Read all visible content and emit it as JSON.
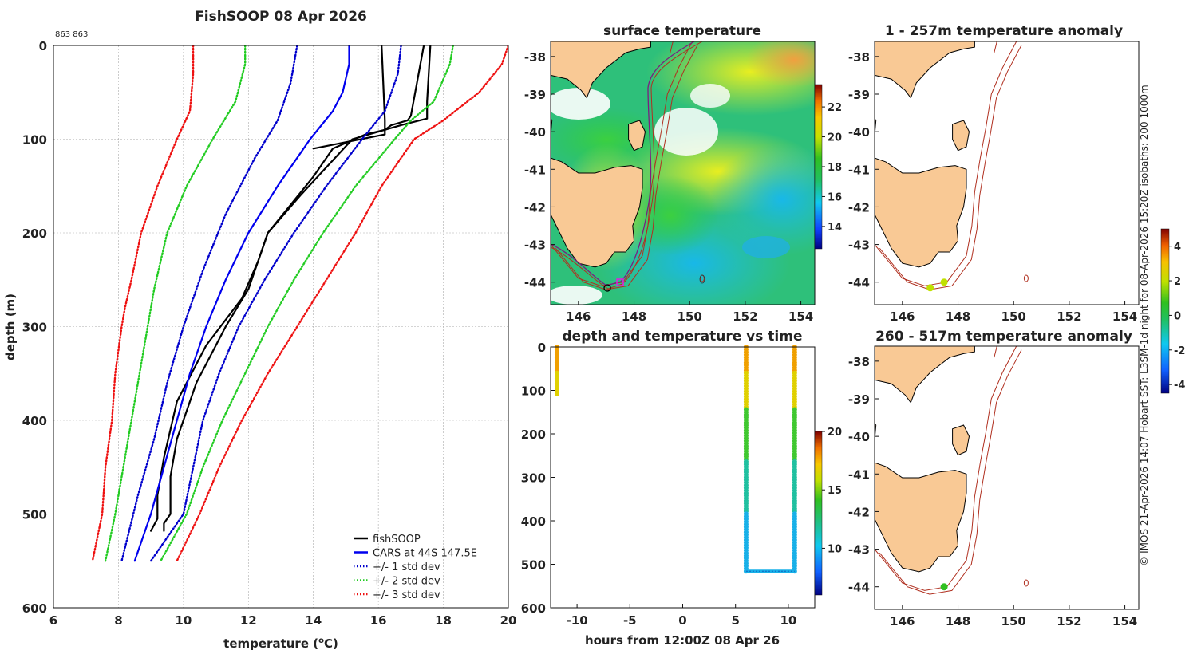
{
  "main_title": "FishSOOP 08 Apr 2026",
  "probe_ids": "863 863",
  "credit": "© IMOS 21-Apr-2026 14:07 Hobart SST: L3SM-1d night for 08-Apr-2026 15:20Z isobaths: 200  1000m",
  "colors": {
    "land": "#f9c995",
    "isobath": "#b03020",
    "fishsoop": "#000000",
    "cars": "#0000ee",
    "std1": "#0000cc",
    "std2": "#22cc22",
    "std3": "#ee1111"
  },
  "chart_data": [
    {
      "id": "profile",
      "type": "line",
      "title": "FishSOOP 08 Apr 2026",
      "xlabel": "temperature (",
      "xlabel_sup": "o",
      "xlabel_end": "C)",
      "ylabel": "depth (m)",
      "xlim": [
        6,
        20
      ],
      "ylim": [
        600,
        0
      ],
      "xticks": [
        "6",
        "8",
        "10",
        "12",
        "14",
        "16",
        "18",
        "20"
      ],
      "yticks": [
        "0",
        "100",
        "200",
        "300",
        "400",
        "500",
        "600"
      ],
      "legend": [
        "fishSOOP",
        "CARS at 44S 147.5E",
        "+/- 1 std dev",
        "+/- 2 std dev",
        "+/- 3 std dev"
      ],
      "series": [
        {
          "name": "fishSOOP down",
          "depth": [
            0,
            60,
            78,
            85,
            100,
            130,
            160,
            200,
            230,
            260,
            300,
            360,
            420,
            460,
            500,
            510,
            518
          ],
          "temp": [
            17.6,
            17.5,
            17.5,
            16.7,
            15.2,
            14.4,
            13.6,
            12.6,
            12.3,
            12.0,
            11.3,
            10.4,
            9.8,
            9.6,
            9.6,
            9.4,
            9.4
          ]
        },
        {
          "name": "fishSOOP up",
          "depth": [
            518,
            505,
            480,
            440,
            380,
            320,
            270,
            230,
            200,
            170,
            140,
            110,
            95,
            90,
            85,
            80,
            75,
            0
          ],
          "temp": [
            9.0,
            9.2,
            9.2,
            9.4,
            9.8,
            10.7,
            11.8,
            12.3,
            12.6,
            13.3,
            14.0,
            14.6,
            15.6,
            16.2,
            16.4,
            16.9,
            17.0,
            17.4
          ]
        },
        {
          "name": "fishSOOP up 2",
          "depth": [
            110,
            95,
            80,
            0
          ],
          "temp": [
            14.0,
            16.2,
            16.2,
            16.1
          ]
        },
        {
          "name": "CARS at 44S 147.5E",
          "depth": [
            0,
            20,
            50,
            70,
            100,
            150,
            200,
            250,
            300,
            350,
            400,
            450,
            500,
            550
          ],
          "temp": [
            15.1,
            15.1,
            14.9,
            14.6,
            13.9,
            12.9,
            12.0,
            11.3,
            10.7,
            10.2,
            9.8,
            9.4,
            9.0,
            8.5
          ]
        },
        {
          "name": "std1 low",
          "depth": [
            0,
            40,
            80,
            120,
            180,
            240,
            300,
            360,
            420,
            480,
            550
          ],
          "temp": [
            13.5,
            13.3,
            12.9,
            12.2,
            11.3,
            10.6,
            10.0,
            9.5,
            9.1,
            8.6,
            8.1
          ]
        },
        {
          "name": "std1 high",
          "depth": [
            0,
            30,
            70,
            100,
            150,
            200,
            250,
            300,
            350,
            400,
            450,
            500,
            550
          ],
          "temp": [
            16.7,
            16.6,
            16.2,
            15.5,
            14.4,
            13.4,
            12.5,
            11.7,
            11.1,
            10.6,
            10.3,
            10.0,
            9.0
          ]
        },
        {
          "name": "std2 low",
          "depth": [
            0,
            20,
            60,
            100,
            150,
            200,
            260,
            320,
            380,
            440,
            500,
            550
          ],
          "temp": [
            11.9,
            11.9,
            11.6,
            10.9,
            10.1,
            9.5,
            9.1,
            8.8,
            8.5,
            8.2,
            7.9,
            7.6
          ]
        },
        {
          "name": "std2 high",
          "depth": [
            0,
            20,
            60,
            80,
            100,
            150,
            200,
            250,
            300,
            350,
            400,
            450,
            500,
            550
          ],
          "temp": [
            18.3,
            18.2,
            17.7,
            17.0,
            16.5,
            15.3,
            14.3,
            13.4,
            12.6,
            11.9,
            11.2,
            10.6,
            10.1,
            9.3
          ]
        },
        {
          "name": "std3 low",
          "depth": [
            0,
            30,
            70,
            100,
            150,
            200,
            250,
            280,
            300,
            350,
            400,
            450,
            500,
            550
          ],
          "temp": [
            10.3,
            10.3,
            10.2,
            9.8,
            9.2,
            8.7,
            8.4,
            8.2,
            8.1,
            7.9,
            7.8,
            7.6,
            7.5,
            7.2
          ]
        },
        {
          "name": "std3 high",
          "depth": [
            0,
            20,
            50,
            80,
            100,
            150,
            200,
            250,
            300,
            350,
            400,
            450,
            500,
            550
          ],
          "temp": [
            20.0,
            19.8,
            19.1,
            18.0,
            17.1,
            16.1,
            15.3,
            14.4,
            13.5,
            12.6,
            11.8,
            11.1,
            10.5,
            9.8
          ]
        }
      ]
    },
    {
      "id": "sst_map",
      "type": "heatmap",
      "title": "surface temperature",
      "xlim": [
        145,
        154.5
      ],
      "ylim": [
        -44.6,
        -37.6
      ],
      "xticks": [
        "146",
        "148",
        "150",
        "152",
        "154"
      ],
      "yticks": [
        "-38",
        "-39",
        "-40",
        "-41",
        "-42",
        "-43",
        "-44"
      ],
      "colorbar_ticks": [
        "22",
        "20",
        "18",
        "16",
        "14"
      ],
      "colorbar_range": [
        12.5,
        23.5
      ]
    },
    {
      "id": "time_series",
      "type": "scatter",
      "title": "depth and temperature vs time",
      "xlabel": "hours from 12:00Z 08 Apr 26",
      "xlim": [
        -12.5,
        12.5
      ],
      "ylim": [
        600,
        0
      ],
      "xticks": [
        "-10",
        "-5",
        "0",
        "5",
        "10"
      ],
      "yticks": [
        "0",
        "100",
        "200",
        "300",
        "400",
        "500",
        "600"
      ],
      "colorbar_ticks": [
        "20",
        "15",
        "10"
      ],
      "colorbar_range": [
        6,
        20
      ],
      "casts": [
        {
          "time_start": -11.9,
          "time_end": -11.9,
          "max_depth": 110
        },
        {
          "time_start": 6.0,
          "time_end": 10.6,
          "max_depth": 516
        }
      ]
    },
    {
      "id": "anom_map_1",
      "type": "scatter",
      "title": "1 - 257m temperature anomaly",
      "xlim": [
        145,
        154.5
      ],
      "ylim": [
        -44.6,
        -37.6
      ],
      "xticks": [
        "146",
        "148",
        "150",
        "152",
        "154"
      ],
      "yticks": [
        "-38",
        "-39",
        "-40",
        "-41",
        "-42",
        "-43",
        "-44"
      ],
      "points": [
        {
          "lon": 147.0,
          "lat": -44.15,
          "anomaly": 1.8
        },
        {
          "lon": 147.5,
          "lat": -44.0,
          "anomaly": 1.5
        }
      ]
    },
    {
      "id": "anom_map_2",
      "type": "scatter",
      "title": "260 - 517m temperature anomaly",
      "xlim": [
        145,
        154.5
      ],
      "ylim": [
        -44.6,
        -37.6
      ],
      "xticks": [
        "146",
        "148",
        "150",
        "152",
        "154"
      ],
      "yticks": [
        "-38",
        "-39",
        "-40",
        "-41",
        "-42",
        "-43",
        "-44"
      ],
      "points": [
        {
          "lon": 147.5,
          "lat": -44.0,
          "anomaly": 0.3
        }
      ]
    },
    {
      "id": "anom_colorbar",
      "type": "heatmap",
      "colorbar_ticks": [
        "4",
        "2",
        "0",
        "-2",
        "-4"
      ],
      "colorbar_range": [
        -4.5,
        5
      ]
    }
  ]
}
